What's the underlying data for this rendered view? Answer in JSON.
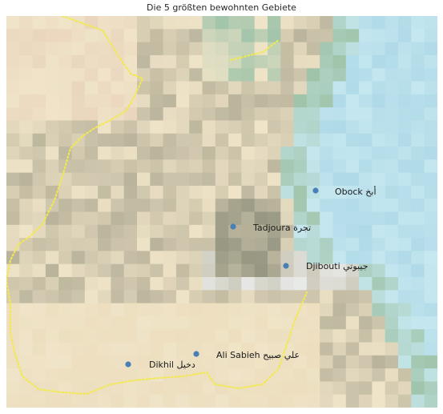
{
  "title": "Die 5 größten bewohnten Gebiete",
  "cities": [
    {
      "name": "Obock أبخ"
    },
    {
      "name": "Tadjoura تجرة"
    },
    {
      "name": "Djibouti جيبوتي"
    },
    {
      "name": "Ali Sabieh علي صبيح"
    },
    {
      "name": "Dikhil دخيل"
    }
  ],
  "colors": {
    "marker": "#4a7fb5",
    "border": "#f2e94e",
    "sea": "#c6e6f2",
    "highland": "#b8b29a",
    "plain": "#efe3c4"
  }
}
